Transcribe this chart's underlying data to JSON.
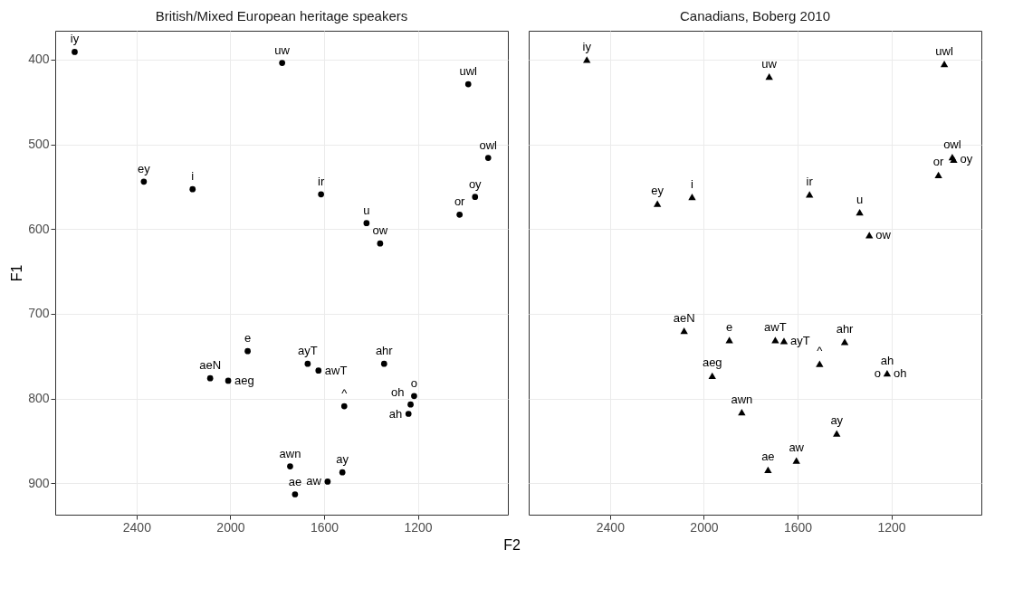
{
  "chart_data": [
    {
      "type": "scatter",
      "title": "British/Mixed European heritage speakers",
      "xlabel": "F2",
      "ylabel": "F1",
      "marker": "circle",
      "color": "#000000",
      "grid": true,
      "x": [
        2664,
        1779,
        985,
        900,
        2369,
        2161,
        1613,
        956,
        1022,
        1419,
        1361,
        1926,
        1670,
        1624,
        1344,
        2086,
        2009,
        1216,
        1231,
        1514,
        1240,
        1745,
        1522,
        1585,
        1724
      ],
      "values": [
        391,
        404,
        429,
        516,
        544,
        553,
        559,
        562,
        583,
        593,
        617,
        744,
        759,
        767,
        759,
        776,
        779,
        797,
        807,
        809,
        818,
        880,
        887,
        898,
        913
      ],
      "annotations": [
        {
          "text": "iy",
          "x": 2664,
          "y": 391
        },
        {
          "text": "uw",
          "x": 1779,
          "y": 404
        },
        {
          "text": "uwl",
          "x": 985,
          "y": 429
        },
        {
          "text": "owl",
          "x": 900,
          "y": 516
        },
        {
          "text": "ey",
          "x": 2369,
          "y": 544
        },
        {
          "text": "i",
          "x": 2161,
          "y": 553
        },
        {
          "text": "ir",
          "x": 1613,
          "y": 559
        },
        {
          "text": "oy",
          "x": 956,
          "y": 562
        },
        {
          "text": "or",
          "x": 1022,
          "y": 583
        },
        {
          "text": "u",
          "x": 1419,
          "y": 593
        },
        {
          "text": "ow",
          "x": 1361,
          "y": 617
        },
        {
          "text": "e",
          "x": 1926,
          "y": 744
        },
        {
          "text": "ayT",
          "x": 1670,
          "y": 759
        },
        {
          "text": "awT",
          "x": 1624,
          "y": 767
        },
        {
          "text": "ahr",
          "x": 1344,
          "y": 759
        },
        {
          "text": "aeN",
          "x": 2086,
          "y": 776
        },
        {
          "text": "aeg",
          "x": 2009,
          "y": 779
        },
        {
          "text": "o",
          "x": 1216,
          "y": 797
        },
        {
          "text": "oh",
          "x": 1231,
          "y": 807
        },
        {
          "text": "^",
          "x": 1514,
          "y": 809
        },
        {
          "text": "ah",
          "x": 1240,
          "y": 818
        },
        {
          "text": "awn",
          "x": 1745,
          "y": 880
        },
        {
          "text": "ay",
          "x": 1522,
          "y": 887
        },
        {
          "text": "aw",
          "x": 1585,
          "y": 898
        },
        {
          "text": "ae",
          "x": 1724,
          "y": 913
        }
      ],
      "xlim": [
        2747,
        816
      ],
      "ylim": [
        937,
        366
      ],
      "xticks": [
        2400,
        2000,
        1600,
        1200
      ],
      "yticks": [
        400,
        500,
        600,
        700,
        800,
        900
      ]
    },
    {
      "type": "scatter",
      "title": "Canadians, Boberg 2010",
      "marker": "triangle",
      "color": "#000000",
      "grid": true,
      "tick_labels": "x",
      "x": [
        2499,
        1721,
        974,
        940,
        934,
        999,
        2198,
        2050,
        1549,
        1335,
        1294,
        2084,
        1891,
        1695,
        1658,
        1399,
        1506,
        1218,
        null,
        null,
        1964,
        1838,
        1433,
        1605,
        1726
      ],
      "values": [
        400,
        420,
        405,
        515,
        518,
        536,
        570,
        562,
        559,
        580,
        607,
        720,
        731,
        731,
        732,
        733,
        759,
        770,
        null,
        null,
        773,
        816,
        841,
        873,
        884
      ],
      "annotations": [
        {
          "text": "iy",
          "x": 2499,
          "y": 400
        },
        {
          "text": "uw",
          "x": 1721,
          "y": 420
        },
        {
          "text": "uwl",
          "x": 974,
          "y": 405
        },
        {
          "text": "owl",
          "x": 940,
          "y": 515
        },
        {
          "text": "oy",
          "x": 934,
          "y": 518
        },
        {
          "text": "or",
          "x": 999,
          "y": 536
        },
        {
          "text": "ey",
          "x": 2198,
          "y": 570
        },
        {
          "text": "i",
          "x": 2050,
          "y": 562
        },
        {
          "text": "ir",
          "x": 1549,
          "y": 559
        },
        {
          "text": "u",
          "x": 1335,
          "y": 580
        },
        {
          "text": "ow",
          "x": 1294,
          "y": 607
        },
        {
          "text": "aeN",
          "x": 2084,
          "y": 720
        },
        {
          "text": "e",
          "x": 1891,
          "y": 731
        },
        {
          "text": "awT",
          "x": 1695,
          "y": 731
        },
        {
          "text": "ayT",
          "x": 1658,
          "y": 732
        },
        {
          "text": "ahr",
          "x": 1399,
          "y": 733
        },
        {
          "text": "^",
          "x": 1506,
          "y": 759
        },
        {
          "text": "ah",
          "x": 1218,
          "y": 770
        },
        {
          "text": "oh",
          "x": 1218,
          "y": 770
        },
        {
          "text": "o",
          "x": 1218,
          "y": 770
        },
        {
          "text": "aeg",
          "x": 1964,
          "y": 773
        },
        {
          "text": "awn",
          "x": 1838,
          "y": 816
        },
        {
          "text": "ay",
          "x": 1433,
          "y": 841
        },
        {
          "text": "aw",
          "x": 1605,
          "y": 873
        },
        {
          "text": "ae",
          "x": 1726,
          "y": 884
        }
      ],
      "xlim": [
        2747,
        816
      ],
      "ylim": [
        937,
        366
      ],
      "xticks": [
        2400,
        2000,
        1600,
        1200
      ],
      "yticks": [
        400,
        500,
        600,
        700,
        800,
        900
      ]
    }
  ]
}
